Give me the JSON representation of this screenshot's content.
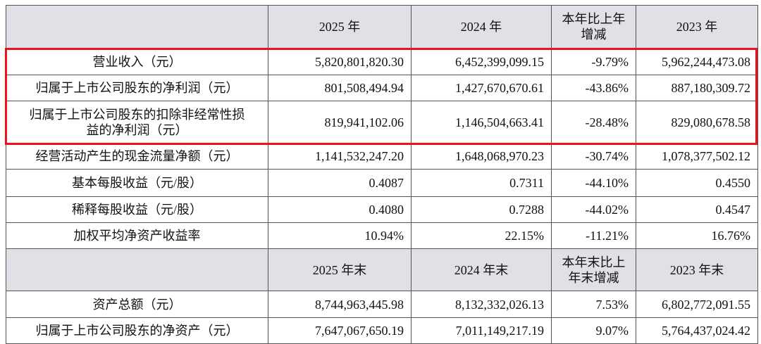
{
  "table": {
    "header": [
      "2025 年",
      "2024 年",
      "本年比上年\n增减",
      "2023 年"
    ],
    "rows": [
      [
        "营业收入（元）",
        "5,820,801,820.30",
        "6,452,399,099.15",
        "-9.79%",
        "5,962,244,473.08"
      ],
      [
        "归属于上市公司股东的净利润（元）",
        "801,508,494.94",
        "1,427,670,670.61",
        "-43.86%",
        "887,180,309.72"
      ],
      [
        "归属于上市公司股东的扣除非经常性损\n益的净利润（元）",
        "819,941,102.06",
        "1,146,504,663.41",
        "-28.48%",
        "829,080,678.58"
      ],
      [
        "经营活动产生的现金流量净额（元）",
        "1,141,532,247.20",
        "1,648,068,970.23",
        "-30.74%",
        "1,078,377,502.12"
      ],
      [
        "基本每股收益（元/股）",
        "0.4087",
        "0.7311",
        "-44.10%",
        "0.4550"
      ],
      [
        "稀释每股收益（元/股）",
        "0.4080",
        "0.7288",
        "-44.02%",
        "0.4547"
      ],
      [
        "加权平均净资产收益率",
        "10.94%",
        "22.15%",
        "-11.21%",
        "16.76%"
      ]
    ],
    "header2": [
      "2025 年末",
      "2024 年末",
      "本年末比上\n年末增减",
      "2023 年末"
    ],
    "rows2": [
      [
        "资产总额（元）",
        "8,744,963,445.98",
        "8,132,332,026.13",
        "7.53%",
        "6,802,772,091.55"
      ],
      [
        "归属于上市公司股东的净资产（元）",
        "7,647,067,650.19",
        "7,011,149,217.19",
        "9.07%",
        "5,764,437,024.42"
      ]
    ]
  }
}
